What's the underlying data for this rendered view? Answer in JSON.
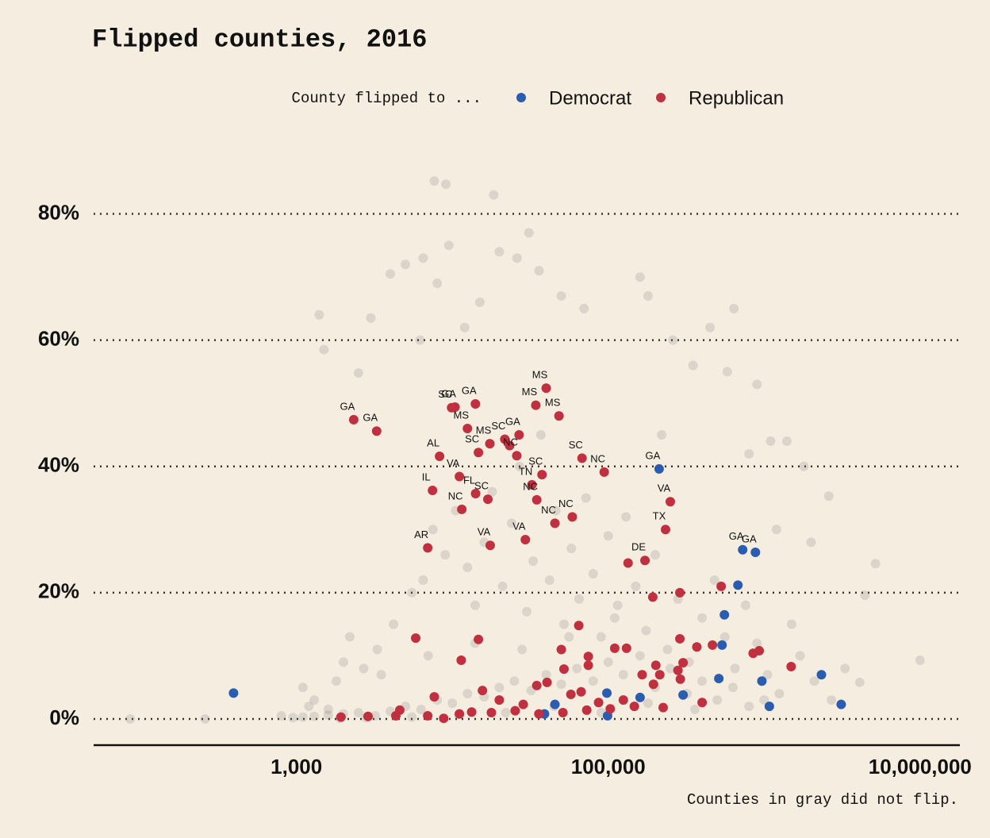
{
  "chart_data": {
    "type": "scatter",
    "title": "Flipped counties, 2016",
    "legend_title": "County flipped to ...",
    "caption": "Counties in gray did not flip.",
    "xscale": "log",
    "xlim": [
      50,
      18000000
    ],
    "xticks": [
      {
        "value": 1000,
        "label": "1,000"
      },
      {
        "value": 100000,
        "label": "100,000"
      },
      {
        "value": 10000000,
        "label": "10,000,000"
      }
    ],
    "ylim": [
      -4.15,
      91
    ],
    "yticks": [
      {
        "value": 0,
        "label": "0%"
      },
      {
        "value": 20,
        "label": "20%"
      },
      {
        "value": 40,
        "label": "40%"
      },
      {
        "value": 60,
        "label": "60%"
      },
      {
        "value": 80,
        "label": "80%"
      }
    ],
    "grid": true,
    "series": [
      {
        "color": "#7a7a7a",
        "x": [
          86,
          259,
          1400,
          7660,
          9100,
          18400,
          10000000,
          5180000,
          2600000,
          4430000,
          4100000,
          1500,
          2500,
          3000,
          4000,
          5000,
          6200,
          6500,
          8000,
          9500,
          12000,
          15000,
          20000,
          26000,
          31000,
          36000,
          50000,
          70000,
          160000,
          180000,
          260000,
          450000,
          640000,
          580000,
          900000,
          1100000,
          1400000,
          1800000,
          2000000,
          1200000,
          800000,
          350000,
          220000,
          1100,
          1200,
          1300,
          1600,
          1800,
          2000,
          2200,
          2700,
          3300,
          4200,
          5500,
          6500,
          7500,
          9000,
          10500,
          12500,
          14000,
          16000,
          18000,
          21000,
          24000,
          27000,
          30000,
          33000,
          37000,
          42000,
          46000,
          52000,
          58000,
          65000,
          72000,
          80000,
          90000,
          100000,
          115000,
          130000,
          150000,
          175000,
          200000,
          240000,
          280000,
          330000,
          400000,
          480000,
          560000,
          650000,
          760000,
          900000,
          1050000,
          1250000,
          1500000,
          1700000,
          2100000,
          2700000,
          3300000,
          800,
          950,
          1100,
          1300,
          1600,
          2000,
          2500,
          3200,
          4000,
          5000,
          6300,
          8000,
          10000,
          12500,
          16000,
          20000,
          25000,
          32000,
          40000,
          50000,
          63000,
          80000,
          100000,
          125000,
          160000,
          200000,
          250000,
          320000,
          400000,
          500000,
          630000,
          800000,
          1000000,
          7000,
          14000,
          28000,
          56000,
          110000,
          3500,
          45000,
          90000,
          180000,
          360000,
          22000,
          11000,
          5500,
          2800,
          1900
        ],
        "values": [
          0,
          0,
          64,
          85.2,
          84.7,
          83,
          9.3,
          24.6,
          35.3,
          19.6,
          5.8,
          58.5,
          54.8,
          63.5,
          70.5,
          72,
          60,
          73,
          69,
          75,
          62,
          66,
          74,
          73,
          77,
          71,
          67,
          65,
          70,
          67,
          60,
          62,
          65,
          55,
          53,
          44,
          44,
          40,
          28,
          30,
          42,
          56,
          45,
          5,
          2,
          3,
          1.5,
          6,
          9,
          13,
          8,
          11,
          15,
          20,
          22,
          30,
          26,
          33,
          24,
          18,
          28,
          36,
          21,
          31,
          40,
          17,
          25,
          45,
          22,
          33,
          15,
          27,
          19,
          35,
          23,
          13,
          29,
          18,
          32,
          21,
          14,
          26,
          11,
          19,
          9,
          16,
          22,
          13,
          8,
          18,
          12,
          7,
          4,
          15,
          10,
          6,
          3,
          8,
          0.5,
          0.2,
          0.3,
          0.4,
          0.6,
          0.8,
          1,
          0.5,
          1.2,
          2,
          1.5,
          3,
          2.5,
          4,
          3.5,
          5,
          6,
          4.5,
          7,
          5.5,
          8,
          6,
          9,
          7,
          10,
          5,
          8,
          4,
          6,
          3,
          5,
          2,
          3,
          10,
          12,
          11,
          13,
          16,
          7,
          2,
          1,
          2.5,
          1.5,
          1,
          0.7,
          0.3,
          0.2,
          0.1
        ]
      },
      {
        "name": "Democrat",
        "color": "#2a5db0",
        "x": [
          395,
          212000,
          728000,
          879000,
          679000,
          556000,
          537000,
          512000,
          967000,
          1080000,
          2330000,
          3120000,
          302000,
          160000,
          98000,
          99000,
          45500,
          39000
        ],
        "values": [
          4.1,
          39.6,
          26.8,
          26.4,
          21.2,
          16.5,
          11.7,
          6.4,
          6,
          2,
          7,
          2.3,
          3.8,
          3.4,
          4.1,
          0.5,
          2.3,
          0.8
        ],
        "labels": [
          null,
          "GA",
          "GA",
          "GA",
          null,
          null,
          null,
          null,
          null,
          null,
          null,
          null,
          null,
          null,
          null,
          null,
          null,
          null
        ]
      },
      {
        "name": "Republican",
        "color": "#c0303e",
        "x": [
          2330,
          3270,
          9890,
          10400,
          14060,
          12500,
          17400,
          21700,
          23300,
          26800,
          8280,
          14700,
          25900,
          11100,
          7460,
          14100,
          16900,
          11500,
          6950,
          17500,
          29400,
          32400,
          37600,
          34800,
          45500,
          58800,
          40000,
          34300,
          48300,
          67900,
          94200,
          250000,
          233000,
          172000,
          134000,
          193000,
          288000,
          530000,
          1490000,
          930000,
          850000,
          466000,
          370000,
          288000,
          302000,
          290000,
          280000,
          202000,
          195000,
          214000,
          165000,
          131000,
          110000,
          64700,
          74500,
          74500,
          50000,
          52000,
          40500,
          34800,
          14700,
          11400,
          5820,
          7660,
          15600,
          400000,
          225000,
          125000,
          67000,
          1930,
          2880,
          4340,
          6950,
          11100,
          17800,
          25300,
          35900,
          51200,
          72800,
          103000,
          147000,
          20000,
          28500,
          57600,
          86700,
          4600,
          8800,
          13300
        ],
        "values": [
          47.4,
          45.6,
          49.3,
          49.4,
          49.9,
          46,
          43.6,
          44.3,
          43.3,
          45,
          41.6,
          42.2,
          41.7,
          38.4,
          36.2,
          35.7,
          34.8,
          33.2,
          27.1,
          27.5,
          28.4,
          37.1,
          38.7,
          34.7,
          31,
          32,
          52.4,
          49.7,
          48,
          41.3,
          39.1,
          34.4,
          30,
          25.1,
          24.7,
          19.3,
          20,
          21,
          8.3,
          10.8,
          10.4,
          11.7,
          11.4,
          12.7,
          8.9,
          6.3,
          7.7,
          8.5,
          5.5,
          7,
          7,
          11.2,
          11.2,
          14.8,
          9.9,
          8.5,
          11,
          7.9,
          5.8,
          5.3,
          12.6,
          9.3,
          12.8,
          3.5,
          4.5,
          2.6,
          1.8,
          3,
          4.3,
          0.3,
          0.4,
          0.5,
          0.5,
          0.8,
          1,
          1.3,
          0.8,
          1,
          1.4,
          1.6,
          2,
          3,
          2.3,
          3.9,
          2.6,
          1.4,
          0.1,
          1.1
        ],
        "labels": [
          "GA",
          "GA",
          "SC",
          "GA",
          "GA",
          "MS",
          "MS",
          "SC",
          null,
          "GA",
          "AL",
          "SC",
          "NC",
          "VA",
          "IL",
          "FL",
          "SC",
          "NC",
          "AR",
          "VA",
          "VA",
          "TN",
          "SC",
          "NC",
          "NC",
          "NC",
          "MS",
          "MS",
          "MS",
          "SC",
          "NC",
          "VA",
          "TX",
          "DE",
          null,
          null,
          null,
          null,
          null,
          null,
          null,
          null,
          null,
          null,
          null,
          null,
          null,
          null,
          null,
          null,
          null,
          null,
          null,
          null,
          null,
          null,
          null,
          null,
          null,
          null,
          null,
          null,
          null,
          null,
          null,
          null,
          null,
          null,
          null,
          null,
          null,
          null,
          null,
          null,
          null,
          null,
          null,
          null,
          null,
          null,
          null,
          null,
          null,
          null,
          null,
          null,
          null,
          null
        ]
      }
    ]
  }
}
